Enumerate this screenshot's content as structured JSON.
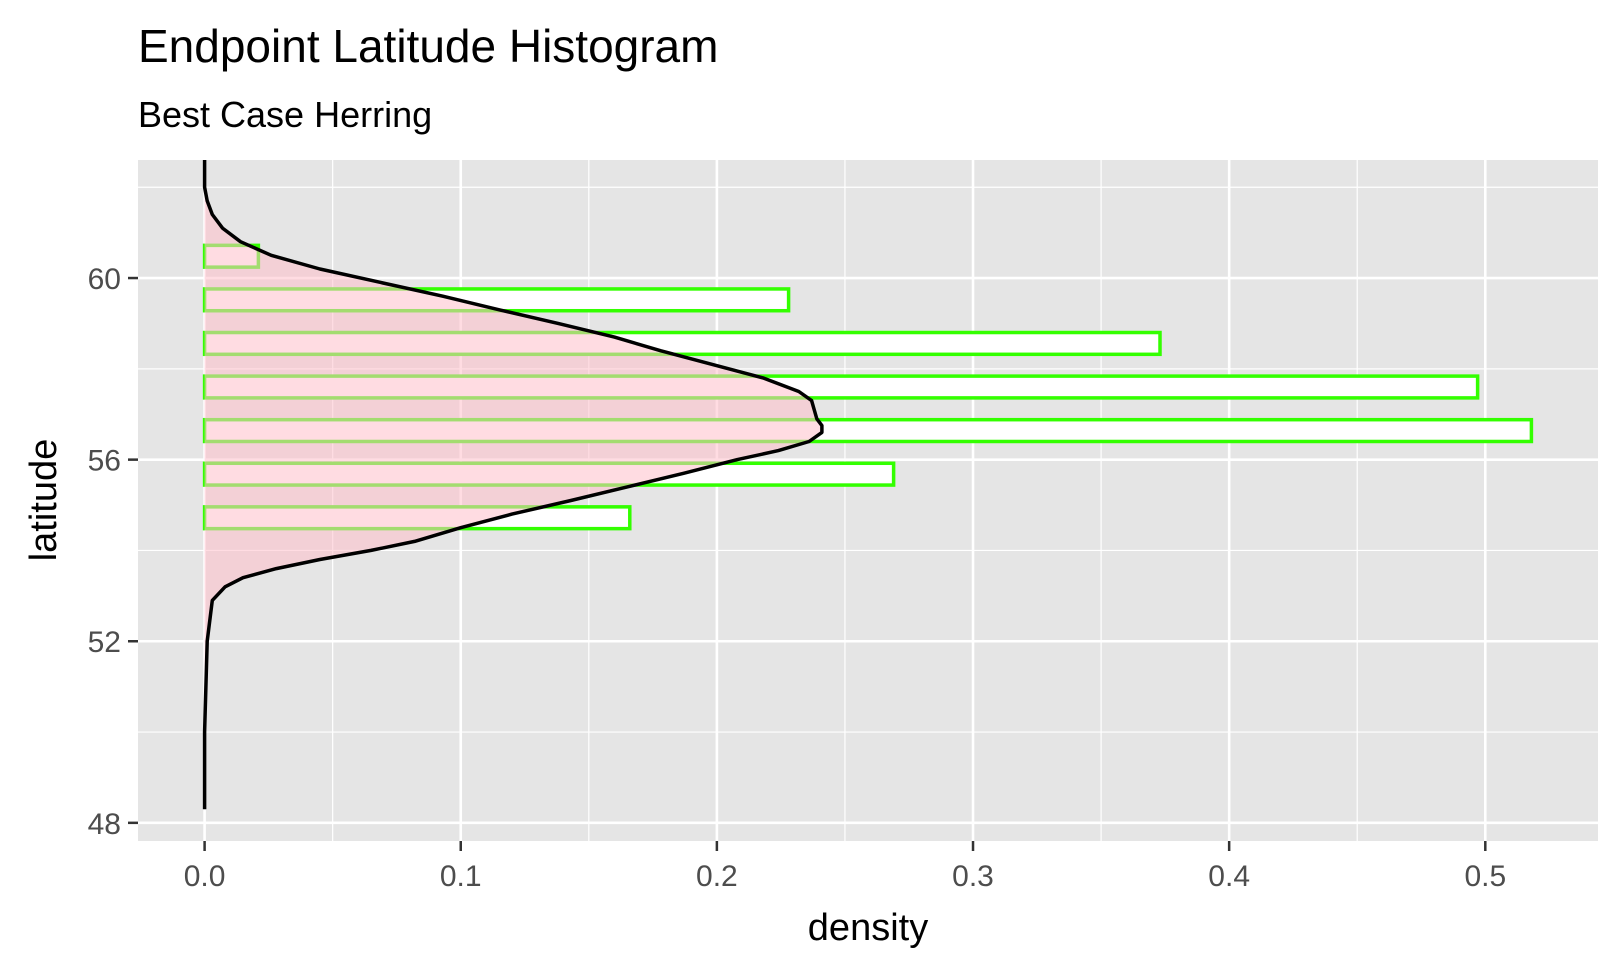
{
  "chart_data": {
    "type": "bar",
    "orientation": "horizontal",
    "title": "Endpoint Latitude Histogram",
    "subtitle": "Best Case Herring",
    "xlabel": "density",
    "ylabel": "latitude",
    "xlim": [
      -0.026,
      0.544
    ],
    "ylim": [
      47.6,
      62.6
    ],
    "x_ticks": [
      0.0,
      0.1,
      0.2,
      0.3,
      0.4,
      0.5
    ],
    "x_tick_labels": [
      "0.0",
      "0.1",
      "0.2",
      "0.3",
      "0.4",
      "0.5"
    ],
    "y_ticks": [
      48,
      52,
      56,
      60
    ],
    "y_tick_labels": [
      "48",
      "52",
      "56",
      "60"
    ],
    "grid": true,
    "legend": false,
    "histogram": {
      "bin_width": 0.48,
      "bins": [
        {
          "lat_min": 60.24,
          "lat_max": 60.72,
          "density": 0.021
        },
        {
          "lat_min": 59.28,
          "lat_max": 59.76,
          "density": 0.228
        },
        {
          "lat_min": 58.32,
          "lat_max": 58.8,
          "density": 0.373
        },
        {
          "lat_min": 57.36,
          "lat_max": 57.84,
          "density": 0.497
        },
        {
          "lat_min": 56.4,
          "lat_max": 56.88,
          "density": 0.518
        },
        {
          "lat_min": 55.44,
          "lat_max": 55.92,
          "density": 0.269
        },
        {
          "lat_min": 54.48,
          "lat_max": 54.96,
          "density": 0.166
        }
      ]
    },
    "density_curve": {
      "latitude": [
        48.3,
        50.0,
        52.0,
        52.9,
        53.2,
        53.4,
        53.6,
        53.8,
        54.0,
        54.2,
        54.5,
        54.8,
        55.1,
        55.4,
        55.7,
        56.0,
        56.2,
        56.4,
        56.6,
        56.75,
        56.9,
        57.1,
        57.3,
        57.5,
        57.8,
        58.1,
        58.4,
        58.7,
        59.0,
        59.3,
        59.6,
        59.9,
        60.2,
        60.5,
        60.8,
        61.1,
        61.4,
        61.7,
        62.0,
        62.3,
        62.6
      ],
      "density": [
        0.0,
        0.0,
        0.001,
        0.003,
        0.008,
        0.015,
        0.028,
        0.045,
        0.065,
        0.082,
        0.1,
        0.12,
        0.143,
        0.165,
        0.187,
        0.208,
        0.224,
        0.236,
        0.241,
        0.241,
        0.239,
        0.238,
        0.237,
        0.232,
        0.218,
        0.198,
        0.178,
        0.16,
        0.138,
        0.115,
        0.093,
        0.069,
        0.045,
        0.026,
        0.014,
        0.007,
        0.003,
        0.001,
        0.0,
        0.0,
        0.0
      ]
    },
    "colors": {
      "panel_background": "#e5e5e5",
      "grid": "#ffffff",
      "bar_fill": "#ffffff",
      "bar_outline": "#33ff00",
      "density_fill": "#ffc0cb",
      "density_line": "#000000",
      "tick_text": "#4d4d4d"
    }
  }
}
